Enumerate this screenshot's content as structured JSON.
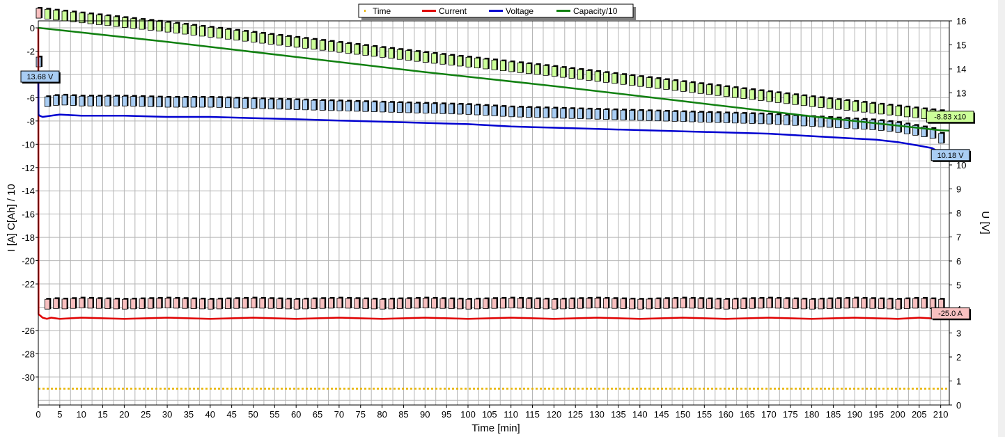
{
  "chart_data": {
    "type": "line",
    "xlabel": "Time [min]",
    "ylabel_left": "I [A]   C[Ah] / 10",
    "ylabel_right": "U [V]",
    "xlim": [
      0,
      212
    ],
    "ylim_left": [
      -32.4,
      0.6
    ],
    "ylim_right": [
      0,
      16
    ],
    "x_ticks": [
      0,
      5,
      10,
      15,
      20,
      25,
      30,
      35,
      40,
      45,
      50,
      55,
      60,
      65,
      70,
      75,
      80,
      85,
      90,
      95,
      100,
      105,
      110,
      115,
      120,
      125,
      130,
      135,
      140,
      145,
      150,
      155,
      160,
      165,
      170,
      175,
      180,
      185,
      190,
      195,
      200,
      205,
      210
    ],
    "y_left_ticks": [
      0,
      -2,
      -6,
      -8,
      -10,
      -12,
      -14,
      -16,
      -18,
      -20,
      -22,
      -26,
      -28,
      -30
    ],
    "y_right_ticks": [
      0,
      1,
      2,
      3,
      4,
      5,
      6,
      7,
      8,
      9,
      10,
      12,
      13,
      14,
      15,
      16
    ],
    "grid": true,
    "legend": {
      "placement": "top-center",
      "entries": [
        {
          "name": "Time",
          "color": "#E8B400",
          "style": "dotted"
        },
        {
          "name": "Current",
          "color": "#E00000",
          "style": "solid"
        },
        {
          "name": "Voltage",
          "color": "#0000D0",
          "style": "solid"
        },
        {
          "name": "Capacity/10",
          "color": "#108010",
          "style": "solid"
        }
      ]
    },
    "series": [
      {
        "name": "Current",
        "axis": "left",
        "color": "#E00000",
        "x": [
          0,
          0.05,
          1,
          2,
          3,
          5,
          10,
          20,
          30,
          40,
          50,
          60,
          70,
          80,
          90,
          100,
          110,
          120,
          130,
          140,
          150,
          160,
          170,
          180,
          190,
          200,
          205,
          210
        ],
        "y": [
          0,
          -24.6,
          -24.9,
          -25.0,
          -24.9,
          -25.0,
          -24.9,
          -25.0,
          -24.9,
          -25.0,
          -24.9,
          -25.0,
          -24.9,
          -25.0,
          -24.9,
          -25.0,
          -24.9,
          -25.0,
          -24.9,
          -25.0,
          -24.9,
          -25.0,
          -24.9,
          -25.0,
          -24.9,
          -25.0,
          -24.9,
          -25.0
        ],
        "end_label": "-25.0 A"
      },
      {
        "name": "Voltage",
        "axis": "right",
        "color": "#0000D0",
        "x": [
          0,
          0.05,
          0.3,
          1,
          3,
          5,
          10,
          20,
          30,
          40,
          50,
          60,
          70,
          80,
          90,
          100,
          110,
          120,
          130,
          140,
          150,
          160,
          170,
          180,
          190,
          195,
          200,
          205,
          208,
          210,
          212
        ],
        "y": [
          13.68,
          12.1,
          12.05,
          12.0,
          12.05,
          12.1,
          12.05,
          12.05,
          12.0,
          12.0,
          11.95,
          11.9,
          11.85,
          11.8,
          11.75,
          11.7,
          11.6,
          11.55,
          11.5,
          11.45,
          11.4,
          11.35,
          11.3,
          11.2,
          11.1,
          11.05,
          10.95,
          10.8,
          10.7,
          10.5,
          10.18
        ],
        "start_label": "13.68 V",
        "end_label": "10.18 V"
      },
      {
        "name": "Capacity/10",
        "axis": "left",
        "color": "#108010",
        "x": [
          0,
          30,
          60,
          90,
          120,
          150,
          180,
          210,
          212
        ],
        "y": [
          0,
          -1.2,
          -2.5,
          -3.8,
          -5.0,
          -6.3,
          -7.6,
          -8.8,
          -8.83
        ],
        "end_label": "-8.83 x10"
      },
      {
        "name": "Time",
        "axis": "left",
        "color": "#E8B400",
        "x": [
          -4,
          212
        ],
        "y": [
          -31.0,
          -31.0
        ]
      }
    ]
  }
}
